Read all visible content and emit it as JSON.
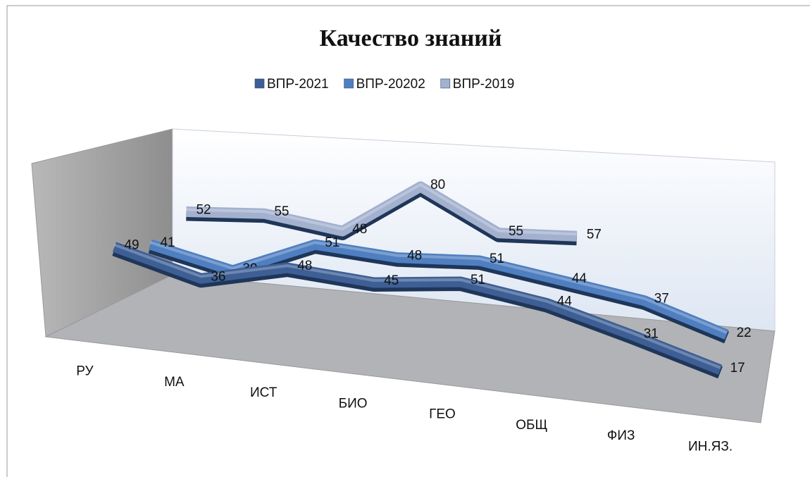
{
  "chart_data": {
    "type": "line3d",
    "title": "Качество знаний",
    "categories": [
      "РУ",
      "МА",
      "ИСТ",
      "БИО",
      "ГЕО",
      "ОБЩ",
      "ФИЗ",
      "ИН.ЯЗ."
    ],
    "series": [
      {
        "name": "ВПР-2021",
        "color": "#3d5f95",
        "values": [
          49,
          36,
          48,
          45,
          51,
          44,
          31,
          17
        ]
      },
      {
        "name": "ВПР-20202",
        "color": "#4f7fc0",
        "values": [
          41,
          30,
          51,
          48,
          51,
          44,
          37,
          22
        ]
      },
      {
        "name": "ВПР-2019",
        "color": "#a3b1cf",
        "values": [
          52,
          55,
          48,
          80,
          55,
          57,
          null,
          null
        ]
      }
    ],
    "ylim": [
      0,
      100
    ],
    "legend": "top"
  }
}
